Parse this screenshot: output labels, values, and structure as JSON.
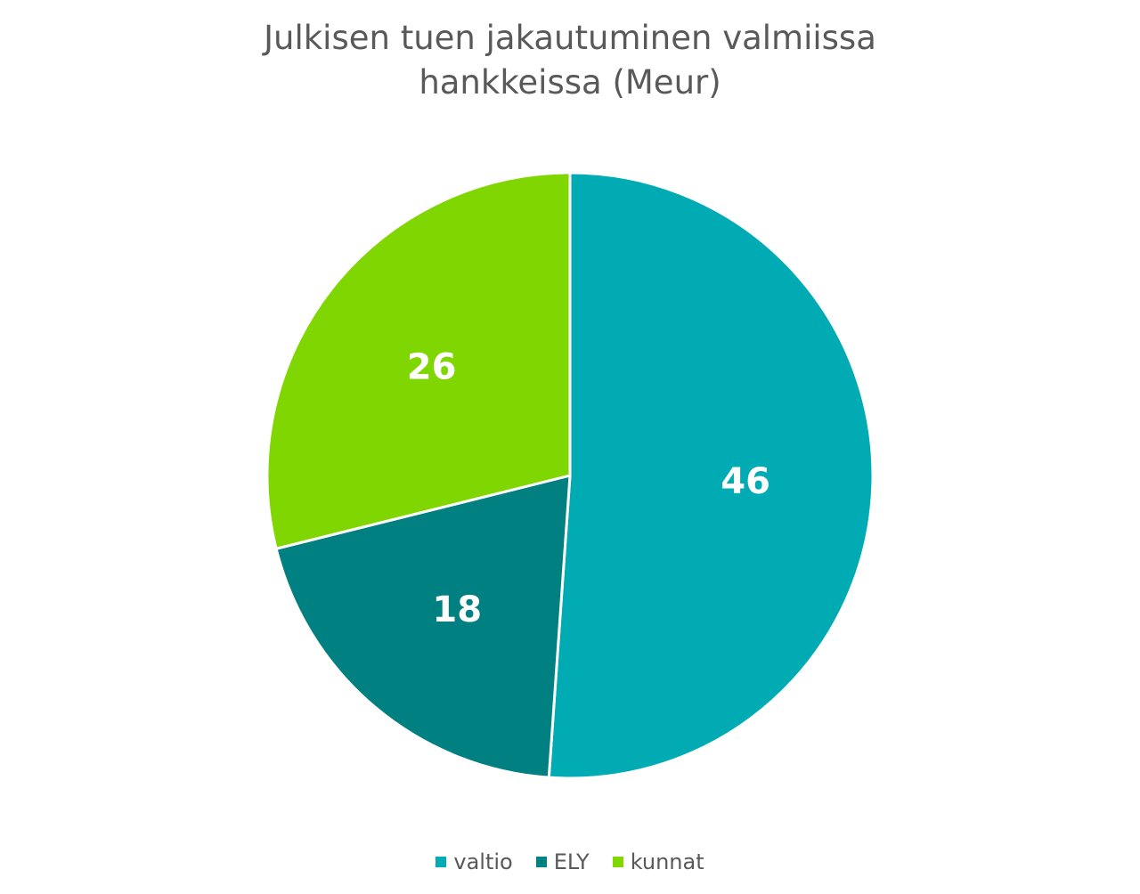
{
  "chart_data": {
    "type": "pie",
    "title_lines": [
      "Julkisen tuen jakautuminen valmiissa",
      "hankkeissa (Meur)"
    ],
    "categories": [
      "valtio",
      "ELY",
      "kunnat"
    ],
    "values": [
      46,
      18,
      26
    ],
    "colors": [
      "#00ABB3",
      "#008080",
      "#80D600"
    ],
    "legend": "bottom",
    "data_labels": [
      "46",
      "18",
      "26"
    ]
  }
}
